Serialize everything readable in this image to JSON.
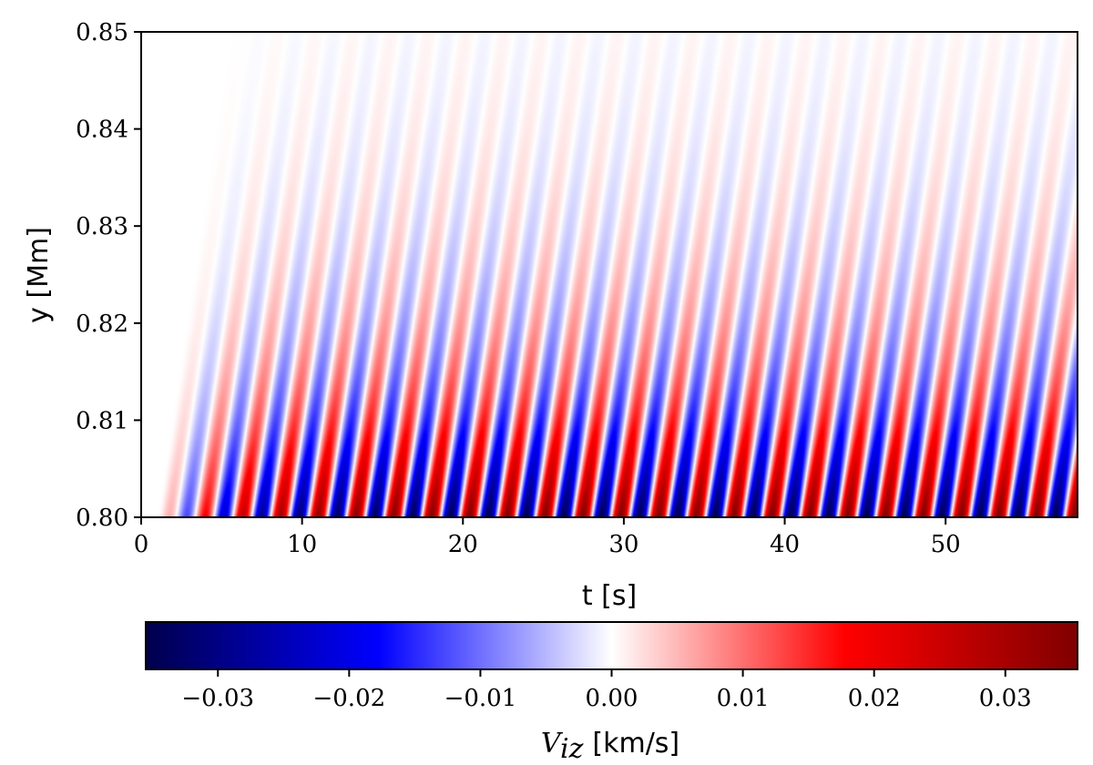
{
  "chart_data": {
    "type": "heatmap",
    "title": "",
    "xlabel": "t [s]",
    "ylabel": "y [Mm]",
    "xlim": [
      0,
      58.2
    ],
    "ylim": [
      0.8,
      0.85
    ],
    "x_ticks": [
      "0",
      "10",
      "20",
      "30",
      "40",
      "50"
    ],
    "y_ticks": [
      "0.80",
      "0.81",
      "0.82",
      "0.83",
      "0.84",
      "0.85"
    ],
    "grid": false,
    "wave": {
      "period_s": 2.35,
      "onset_s": 1.0,
      "rise_time_s": 12,
      "phase_speed_Mm_per_s": 0.011,
      "decay_length_Mm": 0.013,
      "peak_amplitude_km_s": 0.035
    },
    "colorbar": {
      "label_symbol": "V",
      "label_subscript": "iz",
      "label_unit": "[km/s]",
      "orientation": "horizontal",
      "location": "bottom",
      "range": [
        -0.0355,
        0.0355
      ],
      "ticks": [
        -0.03,
        -0.02,
        -0.01,
        0.0,
        0.01,
        0.02,
        0.03
      ],
      "tick_labels": [
        "−0.03",
        "−0.02",
        "−0.01",
        "0.00",
        "0.01",
        "0.02",
        "0.03"
      ],
      "colormap": "seismic",
      "colors": [
        "#00004c",
        "#0000ff",
        "#ffffff",
        "#ff0000",
        "#800000"
      ]
    }
  }
}
